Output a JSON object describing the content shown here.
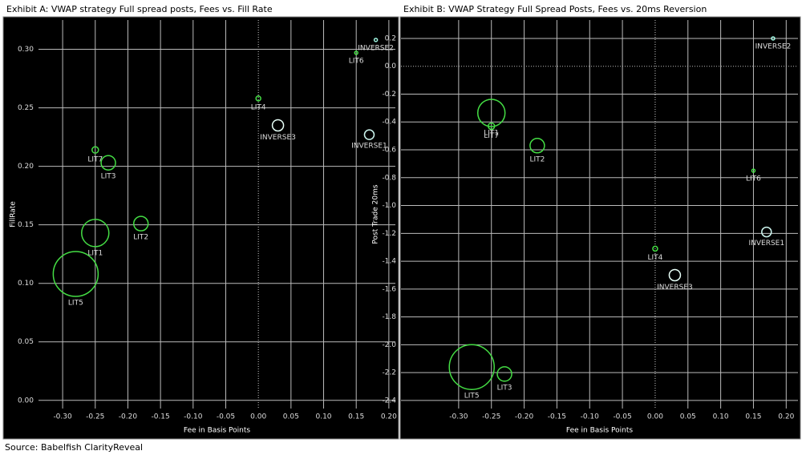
{
  "chart_data": [
    {
      "type": "scatter",
      "title": "Exhibit A: VWAP strategy Full spread posts, Fees vs. Fill Rate",
      "xlabel": "Fee in Basis Points",
      "ylabel": "FillRate",
      "labels": [
        "INVERSE2",
        "LIT6",
        "LIT4",
        "INVERSE3",
        "INVERSE1",
        "LIT7",
        "LIT3",
        "LIT2",
        "LIT1",
        "LIT5"
      ],
      "x": [
        0.18,
        0.15,
        0.0,
        0.03,
        0.17,
        -0.25,
        -0.23,
        -0.18,
        -0.25,
        -0.28
      ],
      "values": [
        0.308,
        0.297,
        0.258,
        0.235,
        0.227,
        0.214,
        0.203,
        0.151,
        0.143,
        0.108
      ],
      "sizes": [
        2,
        2,
        3,
        7,
        6,
        4,
        9,
        9,
        17,
        28
      ],
      "colors": [
        "#9ff5e0",
        "#44dd44",
        "#44dd44",
        "#e8fff8",
        "#ccf5ee",
        "#44dd44",
        "#44dd44",
        "#44dd44",
        "#44dd44",
        "#44dd44"
      ],
      "xlim": [
        -0.337,
        0.21
      ],
      "ylim": [
        -0.007,
        0.325
      ],
      "xticks": [
        {
          "value": -0.3,
          "label": "-0.30"
        },
        -0.25,
        {
          "value": -0.2,
          "label": "-0.20"
        },
        -0.15,
        {
          "value": -0.1,
          "label": "-0.10"
        },
        -0.05,
        {
          "value": 0,
          "label": "0.00"
        },
        0.05,
        {
          "value": 0.1,
          "label": "0.10"
        },
        0.15,
        {
          "value": 0.2,
          "label": "0.20"
        }
      ],
      "yticks": [
        {
          "value": 0,
          "label": "0.00"
        },
        0.05,
        {
          "value": 0.1,
          "label": "0.10"
        },
        0.15,
        {
          "value": 0.2,
          "label": "0.20"
        },
        0.25,
        {
          "value": 0.3,
          "label": "0.30"
        }
      ],
      "grid": true
    },
    {
      "type": "scatter",
      "title": "Exhibit B: VWAP Strategy Full Spread Posts, Fees vs. 20ms Reversion",
      "xlabel": "Fee in Basis Points",
      "ylabel": "Post Trade 20ms",
      "labels": [
        "INVERSE2",
        "LIT1",
        "LIT7",
        "LIT2",
        "LIT6",
        "INVERSE1",
        "LIT4",
        "INVERSE3",
        "LIT5",
        "LIT3"
      ],
      "x": [
        0.18,
        -0.25,
        -0.25,
        -0.18,
        0.15,
        0.17,
        0.0,
        0.03,
        -0.28,
        -0.23
      ],
      "values": [
        0.2,
        -0.335,
        -0.43,
        -0.57,
        -0.75,
        -1.19,
        -1.31,
        -1.5,
        -2.16,
        -2.21
      ],
      "sizes": [
        2,
        17,
        4,
        9,
        2,
        6,
        3,
        7,
        28,
        9
      ],
      "colors": [
        "#9ff5e0",
        "#44dd44",
        "#44dd44",
        "#44dd44",
        "#44dd44",
        "#ccf5ee",
        "#44dd44",
        "#e8fff8",
        "#44dd44",
        "#44dd44"
      ],
      "xlim": [
        -0.388,
        0.218
      ],
      "ylim": [
        -2.458,
        0.332
      ],
      "xticks": [
        {
          "value": -0.3,
          "label": "-0.30"
        },
        -0.25,
        {
          "value": -0.2,
          "label": "-0.20"
        },
        -0.15,
        {
          "value": -0.1,
          "label": "-0.10"
        },
        -0.05,
        {
          "value": 0,
          "label": "0.00"
        },
        0.05,
        {
          "value": 0.1,
          "label": "0.10"
        },
        0.15,
        {
          "value": 0.2,
          "label": "0.20"
        }
      ],
      "yticks": [
        0.2,
        {
          "value": 0,
          "label": "0.0"
        },
        -0.2,
        -0.4,
        -0.6,
        -0.8,
        {
          "value": -1,
          "label": "-1.0"
        },
        -1.2,
        -1.4,
        -1.6,
        -1.8,
        {
          "value": -2,
          "label": "-2.0"
        },
        -2.2,
        -2.4
      ],
      "grid": true
    }
  ],
  "source": "Source:  Babelfish ClarityReveal"
}
